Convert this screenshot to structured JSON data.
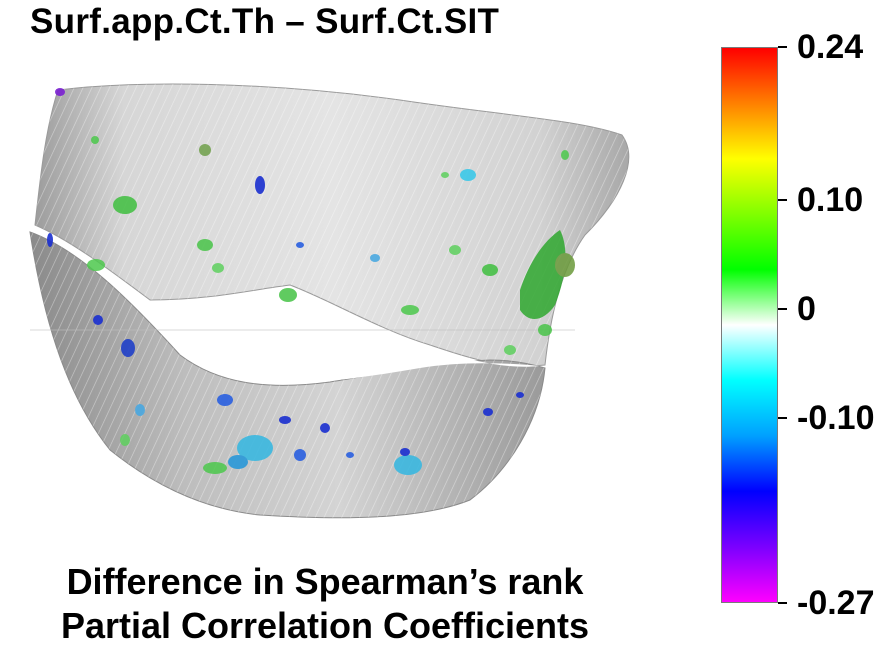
{
  "title": "Surf.app.Ct.Th – Surf.Ct.SIT",
  "caption": {
    "line1": "Difference in Spearman’s rank",
    "line2": "Partial Correlation Coefficients"
  },
  "colorbar": {
    "min": -0.27,
    "max": 0.24,
    "ticks": [
      {
        "value": 0.24,
        "label": "0.24"
      },
      {
        "value": 0.1,
        "label": "0.10"
      },
      {
        "value": 0,
        "label": "0"
      },
      {
        "value": -0.1,
        "label": "-0.10"
      },
      {
        "value": -0.27,
        "label": "-0.27"
      }
    ],
    "colors": [
      "#ff00ff",
      "#7a00ff",
      "#0000ff",
      "#00a0ff",
      "#00ffff",
      "#ffffff",
      "#00ff00",
      "#80ff00",
      "#ffff00",
      "#ff8000",
      "#ff0000"
    ]
  },
  "surface": {
    "base_color": "#d8d8d8",
    "shadow_color": "#8f8f8f"
  }
}
